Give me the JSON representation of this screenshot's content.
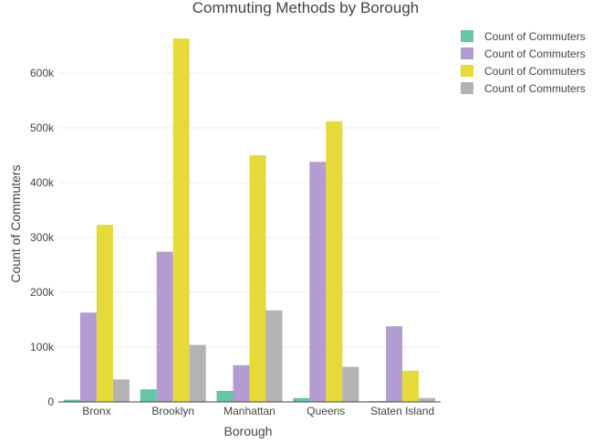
{
  "chart_data": {
    "type": "bar",
    "title": "Commuting Methods by Borough",
    "xlabel": "Borough",
    "ylabel": "Count of Commuters",
    "categories": [
      "Bronx",
      "Brooklyn",
      "Manhattan",
      "Queens",
      "Staten Island"
    ],
    "ylim": [
      0,
      700000
    ],
    "yticks": [
      0,
      100000,
      200000,
      300000,
      400000,
      500000,
      600000
    ],
    "ytick_labels": [
      "0",
      "100k",
      "200k",
      "300k",
      "400k",
      "500k",
      "600k"
    ],
    "grid": true,
    "legend_position": "top-right",
    "series": [
      {
        "name": "Count of Commuters",
        "color": "#66c5a5",
        "values": [
          4000,
          23000,
          20000,
          7000,
          1500
        ]
      },
      {
        "name": "Count of Commuters",
        "color": "#b39cd0",
        "values": [
          163000,
          274000,
          67000,
          438000,
          138000
        ]
      },
      {
        "name": "Count of Commuters",
        "color": "#e6da3a",
        "values": [
          323000,
          663000,
          450000,
          512000,
          57000
        ]
      },
      {
        "name": "Count of Commuters",
        "color": "#b3b3b3",
        "values": [
          41000,
          104000,
          167000,
          64000,
          7000
        ]
      }
    ]
  }
}
